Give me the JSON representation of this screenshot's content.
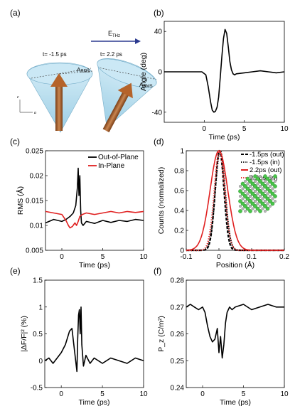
{
  "panel_labels": {
    "a": "(a)",
    "b": "(b)",
    "c": "(c)",
    "d": "(d)",
    "e": "(e)",
    "f": "(f)"
  },
  "panel_a": {
    "field_label": "E",
    "field_subscript": "THz",
    "left_time": "t= -1.5 ps",
    "right_time": "t= 2.2 ps",
    "rms_label": "A",
    "rms_subscript": "RMS",
    "axis_c": "c",
    "axis_a": "a",
    "colors": {
      "arrow": "#b5632a",
      "cone": "#a9d6ea",
      "field_arrow": "#2b3a8f"
    }
  },
  "chart_data": [
    {
      "id": "b",
      "type": "line",
      "xlabel": "Time (ps)",
      "ylabel": "Angle (deg)",
      "xlim": [
        -5,
        10
      ],
      "ylim": [
        -50,
        50
      ],
      "xticks": [
        "0",
        "5",
        "10"
      ],
      "yticks": [
        "-40",
        "0",
        "40"
      ],
      "series": [
        {
          "color": "#000000",
          "x": [
            -5,
            -2,
            -1,
            -0.3,
            0.2,
            0.5,
            0.8,
            1.0,
            1.2,
            1.4,
            1.6,
            1.8,
            2.0,
            2.2,
            2.4,
            2.6,
            2.8,
            3.0,
            3.2,
            3.4,
            3.6,
            3.8,
            4.0,
            5,
            6,
            7,
            8,
            9,
            10
          ],
          "y": [
            0,
            0,
            0,
            0,
            -3,
            -15,
            -30,
            -38,
            -40,
            -39,
            -35,
            -25,
            -5,
            15,
            33,
            42,
            38,
            25,
            10,
            2,
            -2,
            -3,
            -2,
            -1,
            0,
            1,
            0,
            -1,
            0
          ]
        }
      ]
    },
    {
      "id": "c",
      "type": "line",
      "xlabel": "Time (ps)",
      "ylabel": "RMS (Å)",
      "xlim": [
        -2,
        10
      ],
      "ylim": [
        0.005,
        0.025
      ],
      "xticks": [
        "0",
        "5",
        "10"
      ],
      "yticks": [
        "0.005",
        "0.01",
        "0.015",
        "0.02",
        "0.025"
      ],
      "legend_position": "top-right",
      "series": [
        {
          "name": "Out-of-Plane",
          "color": "#000000",
          "x": [
            -2,
            -1,
            0,
            0.5,
            1.0,
            1.4,
            1.7,
            1.9,
            2.0,
            2.1,
            2.2,
            2.3,
            2.4,
            2.6,
            3,
            4,
            5,
            6,
            7,
            8,
            9,
            10
          ],
          "y": [
            0.0105,
            0.0112,
            0.0108,
            0.0112,
            0.0118,
            0.0125,
            0.014,
            0.0175,
            0.0215,
            0.016,
            0.02,
            0.013,
            0.0105,
            0.01,
            0.0108,
            0.0104,
            0.011,
            0.0106,
            0.011,
            0.0108,
            0.0112,
            0.011
          ]
        },
        {
          "name": "In-Plane",
          "color": "#e02020",
          "x": [
            -2,
            -1,
            0,
            0.5,
            0.8,
            1.0,
            1.3,
            1.6,
            1.8,
            2.0,
            2.2,
            2.5,
            3,
            4,
            5,
            6,
            7,
            8,
            9,
            10
          ],
          "y": [
            0.0128,
            0.0125,
            0.0122,
            0.011,
            0.01,
            0.0095,
            0.0098,
            0.0105,
            0.01,
            0.0108,
            0.0118,
            0.0122,
            0.0125,
            0.0122,
            0.0125,
            0.0128,
            0.0125,
            0.0128,
            0.0126,
            0.0128
          ]
        }
      ]
    },
    {
      "id": "d",
      "type": "line",
      "xlabel": "Position (Å)",
      "ylabel": "Counts (normalized)",
      "xlim": [
        -0.1,
        0.2
      ],
      "ylim": [
        0,
        1
      ],
      "xticks": [
        "-0.1",
        "0",
        "0.1",
        "0.2"
      ],
      "yticks": [
        "0",
        "0.2",
        "0.4",
        "0.6",
        "0.8",
        "1"
      ],
      "legend_position": "top-right",
      "series": [
        {
          "name": "-1.5ps (out)",
          "style": "dash",
          "color": "#000000",
          "center": 0.002,
          "sigma": 0.0135
        },
        {
          "name": "-1.5ps (in)",
          "style": "dot",
          "color": "#000000",
          "center": 0.004,
          "sigma": 0.015
        },
        {
          "name": "2.2ps (out)",
          "style": "solid",
          "color": "#e02020",
          "center": 0.0,
          "sigma": 0.027
        },
        {
          "name": "2.2ps (in)",
          "style": "dot",
          "color": "#e02020",
          "center": 0.002,
          "sigma": 0.016
        }
      ]
    },
    {
      "id": "e",
      "type": "line",
      "xlabel": "Time (ps)",
      "ylabel": "|ΔF/F|² (%)",
      "xlim": [
        -2,
        10
      ],
      "ylim": [
        -0.5,
        1.5
      ],
      "xticks": [
        "0",
        "5",
        "10"
      ],
      "yticks": [
        "-0.5",
        "0",
        "0.5",
        "1",
        "1.5"
      ],
      "series": [
        {
          "color": "#000000",
          "x": [
            -2,
            -1.5,
            -1,
            -0.5,
            0,
            0.5,
            1.0,
            1.3,
            1.6,
            1.9,
            2.0,
            2.1,
            2.2,
            2.3,
            2.4,
            2.5,
            2.7,
            3.0,
            3.5,
            4,
            5,
            6,
            7,
            8,
            9,
            10
          ],
          "y": [
            0.0,
            0.05,
            -0.05,
            0.05,
            0.15,
            0.3,
            0.55,
            0.6,
            0.2,
            -0.2,
            0.4,
            0.85,
            0.95,
            0.5,
            1.0,
            0.3,
            -0.1,
            0.1,
            -0.05,
            0.05,
            -0.05,
            0.05,
            0.0,
            -0.05,
            0.05,
            0.0
          ]
        }
      ]
    },
    {
      "id": "f",
      "type": "line",
      "xlabel": "Time (ps)",
      "ylabel": "P_z (C/m²)",
      "xlim": [
        -2,
        10
      ],
      "ylim": [
        0.24,
        0.28
      ],
      "xticks": [
        "0",
        "5",
        "10"
      ],
      "yticks": [
        "0.24",
        "0.25",
        "0.26",
        "0.27",
        "0.28"
      ],
      "series": [
        {
          "color": "#000000",
          "x": [
            -2,
            -1.5,
            -1,
            -0.5,
            0,
            0.3,
            0.6,
            0.9,
            1.2,
            1.5,
            1.8,
            2.0,
            2.2,
            2.4,
            2.6,
            2.8,
            3.0,
            3.3,
            3.6,
            4,
            5,
            6,
            7,
            8,
            9,
            10
          ],
          "y": [
            0.27,
            0.271,
            0.27,
            0.269,
            0.27,
            0.268,
            0.263,
            0.259,
            0.257,
            0.258,
            0.262,
            0.253,
            0.259,
            0.251,
            0.256,
            0.264,
            0.268,
            0.27,
            0.269,
            0.27,
            0.271,
            0.269,
            0.27,
            0.271,
            0.27,
            0.27
          ]
        }
      ]
    }
  ]
}
